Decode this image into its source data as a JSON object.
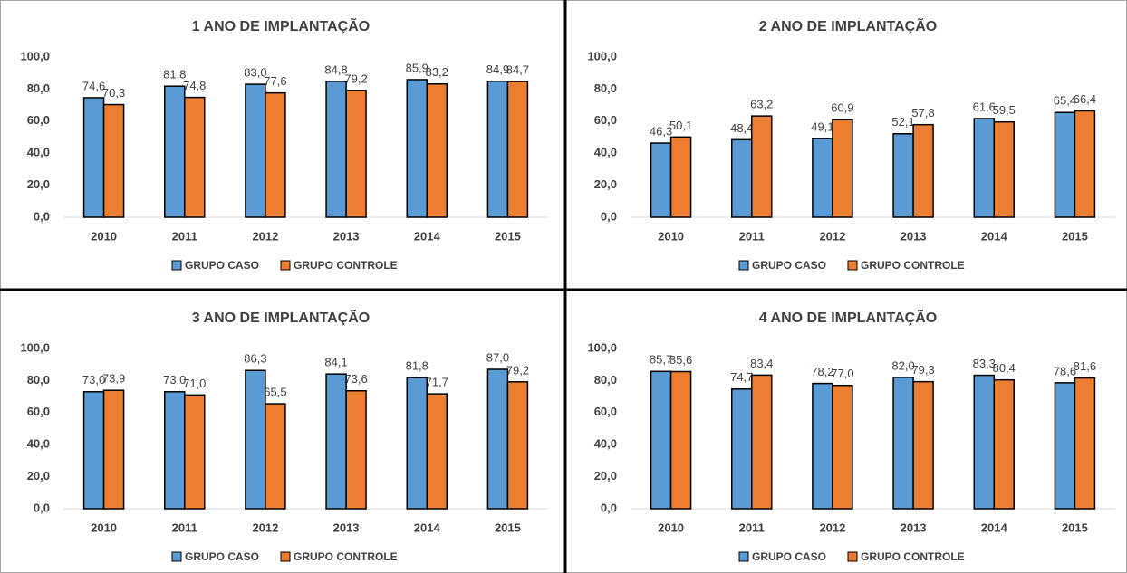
{
  "chart_data": [
    {
      "type": "bar",
      "title": "1 ANO DE IMPLANTAÇÃO",
      "categories": [
        "2010",
        "2011",
        "2012",
        "2013",
        "2014",
        "2015"
      ],
      "series": [
        {
          "name": "GRUPO CASO",
          "color": "#5b9bd5",
          "values": [
            74.6,
            81.8,
            83.0,
            84.8,
            85.9,
            84.9
          ],
          "value_labels": [
            "74,6",
            "81,8",
            "83,0",
            "84,8",
            "85,9",
            "84,9"
          ]
        },
        {
          "name": "GRUPO CONTROLE",
          "color": "#ed7d31",
          "values": [
            70.3,
            74.8,
            77.6,
            79.2,
            83.2,
            84.7
          ],
          "value_labels": [
            "70,3",
            "74,8",
            "77,6",
            "79,2",
            "83,2",
            "84,7"
          ]
        }
      ],
      "ylim": [
        0,
        100
      ],
      "yticks": [
        {
          "value": 0,
          "label": "0,0"
        },
        {
          "value": 20,
          "label": "20,0"
        },
        {
          "value": 40,
          "label": "40,0"
        },
        {
          "value": 60,
          "label": "60,0"
        },
        {
          "value": 80,
          "label": "80,0"
        },
        {
          "value": 100,
          "label": "100,0"
        }
      ],
      "grid": false,
      "legend": "bottom"
    },
    {
      "type": "bar",
      "title": "2 ANO DE IMPLANTAÇÃO",
      "categories": [
        "2010",
        "2011",
        "2012",
        "2013",
        "2014",
        "2015"
      ],
      "series": [
        {
          "name": "GRUPO CASO",
          "color": "#5b9bd5",
          "values": [
            46.3,
            48.4,
            49.1,
            52.1,
            61.6,
            65.4
          ],
          "value_labels": [
            "46,3",
            "48,4",
            "49,1",
            "52,1",
            "61,6",
            "65,4"
          ]
        },
        {
          "name": "GRUPO CONTROLE",
          "color": "#ed7d31",
          "values": [
            50.1,
            63.2,
            60.9,
            57.8,
            59.5,
            66.4
          ],
          "value_labels": [
            "50,1",
            "63,2",
            "60,9",
            "57,8",
            "59,5",
            "66,4"
          ]
        }
      ],
      "ylim": [
        0,
        100
      ],
      "yticks": [
        {
          "value": 0,
          "label": "0,0"
        },
        {
          "value": 20,
          "label": "20,0"
        },
        {
          "value": 40,
          "label": "40,0"
        },
        {
          "value": 60,
          "label": "60,0"
        },
        {
          "value": 80,
          "label": "80,0"
        },
        {
          "value": 100,
          "label": "100,0"
        }
      ],
      "grid": false,
      "legend": "bottom"
    },
    {
      "type": "bar",
      "title": "3 ANO DE IMPLANTAÇÃO",
      "categories": [
        "2010",
        "2011",
        "2012",
        "2013",
        "2014",
        "2015"
      ],
      "series": [
        {
          "name": "GRUPO CASO",
          "color": "#5b9bd5",
          "values": [
            73.0,
            73.0,
            86.3,
            84.1,
            81.8,
            87.0
          ],
          "value_labels": [
            "73,0",
            "73,0",
            "86,3",
            "84,1",
            "81,8",
            "87,0"
          ]
        },
        {
          "name": "GRUPO CONTROLE",
          "color": "#ed7d31",
          "values": [
            73.9,
            71.0,
            65.5,
            73.6,
            71.7,
            79.2
          ],
          "value_labels": [
            "73,9",
            "71,0",
            "65,5",
            "73,6",
            "71,7",
            "79,2"
          ]
        }
      ],
      "ylim": [
        0,
        100
      ],
      "yticks": [
        {
          "value": 0,
          "label": "0,0"
        },
        {
          "value": 20,
          "label": "20,0"
        },
        {
          "value": 40,
          "label": "40,0"
        },
        {
          "value": 60,
          "label": "60,0"
        },
        {
          "value": 80,
          "label": "80,0"
        },
        {
          "value": 100,
          "label": "100,0"
        }
      ],
      "grid": false,
      "legend": "bottom"
    },
    {
      "type": "bar",
      "title": "4 ANO DE IMPLANTAÇÃO",
      "categories": [
        "2010",
        "2011",
        "2012",
        "2013",
        "2014",
        "2015"
      ],
      "series": [
        {
          "name": "GRUPO CASO",
          "color": "#5b9bd5",
          "values": [
            85.7,
            74.7,
            78.2,
            82.0,
            83.3,
            78.6
          ],
          "value_labels": [
            "85,7",
            "74,7",
            "78,2",
            "82,0",
            "83,3",
            "78,6"
          ]
        },
        {
          "name": "GRUPO CONTROLE",
          "color": "#ed7d31",
          "values": [
            85.6,
            83.4,
            77.0,
            79.3,
            80.4,
            81.6
          ],
          "value_labels": [
            "85,6",
            "83,4",
            "77,0",
            "79,3",
            "80,4",
            "81,6"
          ]
        }
      ],
      "ylim": [
        0,
        100
      ],
      "yticks": [
        {
          "value": 0,
          "label": "0,0"
        },
        {
          "value": 20,
          "label": "20,0"
        },
        {
          "value": 40,
          "label": "40,0"
        },
        {
          "value": 60,
          "label": "60,0"
        },
        {
          "value": 80,
          "label": "80,0"
        },
        {
          "value": 100,
          "label": "100,0"
        }
      ],
      "grid": false,
      "legend": "bottom"
    }
  ]
}
